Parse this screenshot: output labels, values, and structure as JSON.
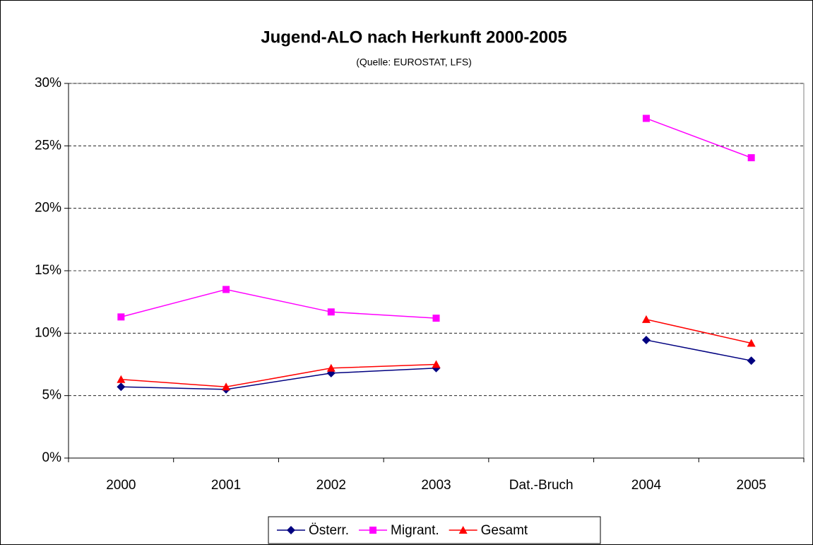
{
  "chart_data": {
    "type": "line",
    "title": "Jugend-ALO nach Herkunft 2000-2005",
    "subtitle": "(Quelle: EUROSTAT, LFS)",
    "categories": [
      "2000",
      "2001",
      "2002",
      "2003",
      "Dat.-Bruch",
      "2004",
      "2005"
    ],
    "series": [
      {
        "name": "Österr.",
        "color": "#000080",
        "marker": "diamond",
        "values": [
          5.7,
          5.5,
          6.8,
          7.2,
          null,
          9.45,
          7.8
        ]
      },
      {
        "name": "Migrant.",
        "color": "#ff00ff",
        "marker": "square",
        "values": [
          11.3,
          13.5,
          11.7,
          11.2,
          null,
          27.2,
          24.05
        ]
      },
      {
        "name": "Gesamt",
        "color": "#ff0000",
        "marker": "triangle",
        "values": [
          6.3,
          5.7,
          7.2,
          7.5,
          null,
          11.1,
          9.2
        ]
      }
    ],
    "ylim": [
      0,
      30
    ],
    "yticks": [
      {
        "value": 0,
        "label": "0%"
      },
      {
        "value": 5,
        "label": "5%"
      },
      {
        "value": 10,
        "label": "10%"
      },
      {
        "value": 15,
        "label": "15%"
      },
      {
        "value": 20,
        "label": "20%"
      },
      {
        "value": 25,
        "label": "25%"
      },
      {
        "value": 30,
        "label": "30%"
      }
    ],
    "grid": true,
    "legend": "bottom"
  }
}
